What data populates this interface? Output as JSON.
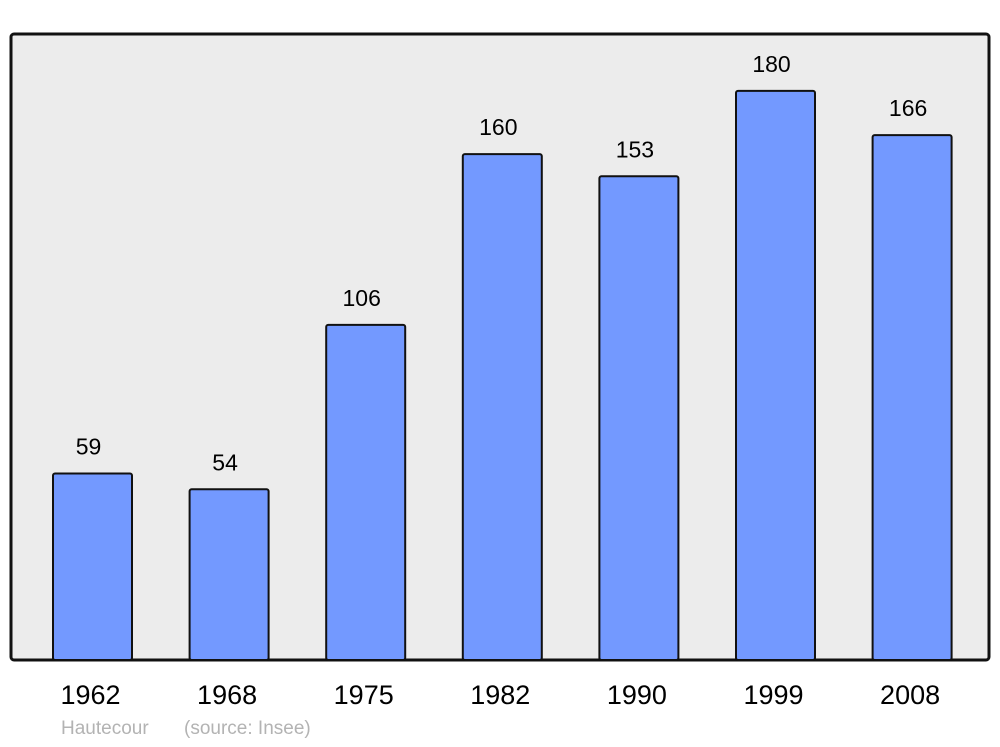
{
  "chart_data": {
    "type": "bar",
    "categories": [
      "1962",
      "1968",
      "1975",
      "1982",
      "1990",
      "1999",
      "2008"
    ],
    "values": [
      59,
      54,
      106,
      160,
      153,
      180,
      166
    ],
    "title": "",
    "xlabel": "",
    "ylabel": "",
    "ylim": [
      0,
      198
    ],
    "grid": false,
    "bar_color": "#7399ff",
    "background_color": "#ececec"
  },
  "footer": {
    "place": "Hautecour",
    "source": "(source: Insee)"
  }
}
